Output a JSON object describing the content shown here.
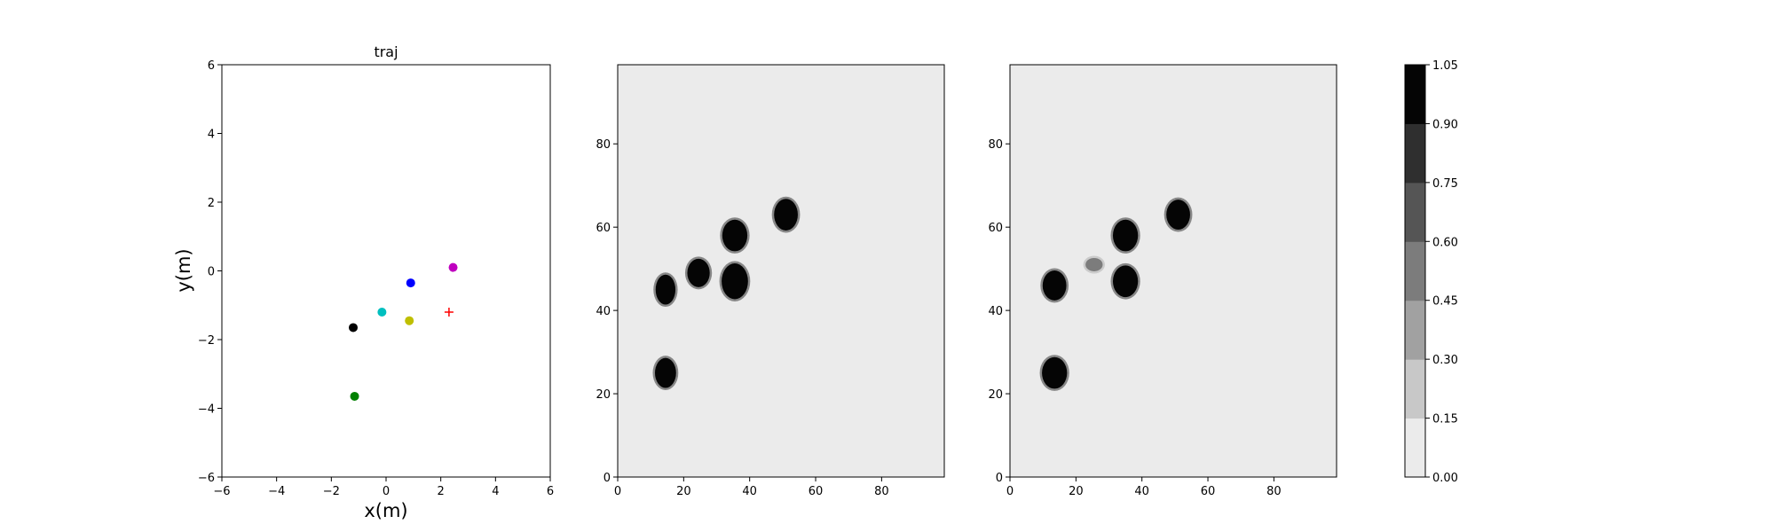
{
  "chart_data": [
    {
      "type": "scatter",
      "title": "traj",
      "xlabel": "x(m)",
      "ylabel": "y(m)",
      "xlim": [
        -6,
        6
      ],
      "ylim": [
        -6,
        6
      ],
      "xticks": [
        "−6",
        "−4",
        "−2",
        "0",
        "2",
        "4",
        "6"
      ],
      "yticks": [
        "−6",
        "−4",
        "−2",
        "0",
        "2",
        "4",
        "6"
      ],
      "grid": false,
      "points": [
        {
          "x": 2.45,
          "y": 0.1,
          "color": "#bf00bf",
          "marker": "circle"
        },
        {
          "x": 0.9,
          "y": -0.35,
          "color": "#0000ff",
          "marker": "circle"
        },
        {
          "x": -0.15,
          "y": -1.2,
          "color": "#00bfbf",
          "marker": "circle"
        },
        {
          "x": 0.85,
          "y": -1.45,
          "color": "#bfbf00",
          "marker": "circle"
        },
        {
          "x": -1.2,
          "y": -1.65,
          "color": "#000000",
          "marker": "circle"
        },
        {
          "x": -1.15,
          "y": -3.65,
          "color": "#008000",
          "marker": "circle"
        },
        {
          "x": 2.3,
          "y": -1.2,
          "color": "#ff0000",
          "marker": "plus"
        }
      ]
    },
    {
      "type": "heatmap",
      "xlim": [
        0,
        99
      ],
      "ylim": [
        0,
        99
      ],
      "xticks": [
        "0",
        "20",
        "40",
        "60",
        "80"
      ],
      "yticks": [
        "0",
        "20",
        "40",
        "60",
        "80"
      ],
      "background_value": 0.05,
      "blobs": [
        {
          "cx": 14.5,
          "cy": 25,
          "rx": 3.2,
          "ry": 3.6,
          "value": 1.0
        },
        {
          "cx": 14.5,
          "cy": 45,
          "rx": 3.0,
          "ry": 3.6,
          "value": 1.0
        },
        {
          "cx": 24.5,
          "cy": 49,
          "rx": 3.4,
          "ry": 3.4,
          "value": 1.0
        },
        {
          "cx": 35.5,
          "cy": 47,
          "rx": 4.0,
          "ry": 4.3,
          "value": 1.0
        },
        {
          "cx": 35.5,
          "cy": 58,
          "rx": 3.8,
          "ry": 3.8,
          "value": 1.0
        },
        {
          "cx": 51,
          "cy": 63,
          "rx": 3.6,
          "ry": 3.8,
          "value": 1.0
        }
      ]
    },
    {
      "type": "heatmap",
      "xlim": [
        0,
        99
      ],
      "ylim": [
        0,
        99
      ],
      "xticks": [
        "0",
        "20",
        "40",
        "60",
        "80"
      ],
      "yticks": [
        "0",
        "20",
        "40",
        "60",
        "80"
      ],
      "background_value": 0.05,
      "blobs": [
        {
          "cx": 13.5,
          "cy": 25,
          "rx": 3.8,
          "ry": 3.8,
          "value": 1.0
        },
        {
          "cx": 13.5,
          "cy": 46,
          "rx": 3.6,
          "ry": 3.6,
          "value": 1.0
        },
        {
          "cx": 25.5,
          "cy": 51,
          "rx": 2.6,
          "ry": 1.6,
          "value": 0.5
        },
        {
          "cx": 35,
          "cy": 47,
          "rx": 3.8,
          "ry": 3.8,
          "value": 1.0
        },
        {
          "cx": 35,
          "cy": 58,
          "rx": 3.8,
          "ry": 3.8,
          "value": 1.0
        },
        {
          "cx": 51,
          "cy": 63,
          "rx": 3.6,
          "ry": 3.6,
          "value": 1.0
        }
      ]
    }
  ],
  "colorbar": {
    "levels": [
      "0.00",
      "0.15",
      "0.30",
      "0.45",
      "0.60",
      "0.75",
      "0.90",
      "1.05"
    ],
    "colors": [
      "#ebebeb",
      "#c8c8c8",
      "#a1a1a1",
      "#7c7c7c",
      "#555555",
      "#2f2f2f",
      "#050505"
    ]
  }
}
